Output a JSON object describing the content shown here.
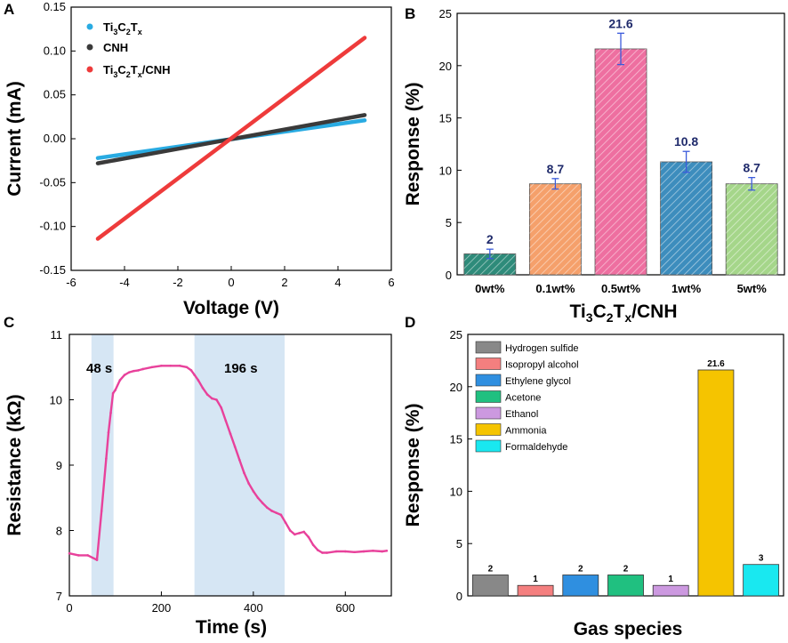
{
  "panels": {
    "A": "A",
    "B": "B",
    "C": "C",
    "D": "D"
  },
  "chart_data": [
    {
      "id": "A",
      "type": "line",
      "xlabel": "Voltage (V)",
      "ylabel": "Current (mA)",
      "xlim": [
        -6,
        6
      ],
      "ylim": [
        -0.15,
        0.15
      ],
      "xticks": [
        -6,
        -4,
        -2,
        0,
        2,
        4,
        6
      ],
      "yticks": [
        -0.15,
        -0.1,
        -0.05,
        0.0,
        0.05,
        0.1,
        0.15
      ],
      "ytick_labels": [
        "-0.15",
        "-0.10",
        "-0.05",
        "0.00",
        "0.05",
        "0.10",
        "0.15"
      ],
      "legend_position": "top-left",
      "series": [
        {
          "name": "Ti3C2Tx",
          "legend_main": "Ti",
          "legend_sub1": "3",
          "legend_mid": "C",
          "legend_sub2": "2",
          "legend_T": "T",
          "legend_sub3": "x",
          "legend_tail": "",
          "color": "#29abe2",
          "x": [
            -5,
            5
          ],
          "y": [
            -0.022,
            0.021
          ]
        },
        {
          "name": "CNH",
          "legend_text": "CNH",
          "color": "#3a3a3a",
          "x": [
            -5,
            5
          ],
          "y": [
            -0.028,
            0.027
          ]
        },
        {
          "name": "Ti3C2Tx/CNH",
          "legend_main": "Ti",
          "legend_sub1": "3",
          "legend_mid": "C",
          "legend_sub2": "2",
          "legend_T": "T",
          "legend_sub3": "x",
          "legend_tail": "/CNH",
          "color": "#ee3b3b",
          "x": [
            -5,
            5
          ],
          "y": [
            -0.114,
            0.115
          ]
        }
      ]
    },
    {
      "id": "B",
      "type": "bar",
      "categories": [
        "0wt%",
        "0.1wt%",
        "0.5wt%",
        "1wt%",
        "5wt%"
      ],
      "values": [
        2,
        8.7,
        21.6,
        10.8,
        8.7
      ],
      "errors": [
        0.45,
        0.5,
        1.5,
        1.0,
        0.6
      ],
      "value_labels": [
        "2",
        "8.7",
        "21.6",
        "10.8",
        "8.7"
      ],
      "colors": [
        "#2e8b7a",
        "#f5a06b",
        "#ee6fa0",
        "#3d8dbd",
        "#a5d68a"
      ],
      "xlabel_main": "Ti",
      "xlabel_sub1": "3",
      "xlabel_mid": "C",
      "xlabel_sub2": "2",
      "xlabel_T": "T",
      "xlabel_sub3": "x",
      "xlabel_tail": "/CNH",
      "ylabel": "Response (%)",
      "ylim": [
        0,
        25
      ],
      "yticks": [
        0,
        5,
        10,
        15,
        20,
        25
      ]
    },
    {
      "id": "C",
      "type": "line",
      "xlabel": "Time (s)",
      "ylabel": "Resistance (kΩ)",
      "xlim": [
        0,
        700
      ],
      "ylim": [
        7,
        11
      ],
      "xticks": [
        0,
        200,
        400,
        600
      ],
      "yticks": [
        7,
        8,
        9,
        10,
        11
      ],
      "color": "#e8419b",
      "shaded_regions": [
        [
          48,
          96
        ],
        [
          272,
          468
        ]
      ],
      "annotations": [
        "48 s",
        "196 s"
      ],
      "x": [
        0,
        20,
        40,
        60,
        70,
        80,
        85,
        90,
        95,
        100,
        110,
        120,
        130,
        140,
        150,
        160,
        180,
        200,
        220,
        240,
        255,
        265,
        272,
        280,
        290,
        300,
        310,
        320,
        330,
        340,
        350,
        360,
        370,
        380,
        390,
        400,
        410,
        420,
        430,
        440,
        450,
        460,
        470,
        480,
        490,
        500,
        510,
        520,
        530,
        540,
        550,
        560,
        580,
        600,
        620,
        640,
        660,
        680,
        690
      ],
      "y": [
        7.65,
        7.62,
        7.62,
        7.55,
        8.3,
        9.1,
        9.5,
        9.8,
        10.1,
        10.15,
        10.3,
        10.38,
        10.42,
        10.44,
        10.45,
        10.47,
        10.5,
        10.52,
        10.52,
        10.52,
        10.5,
        10.45,
        10.38,
        10.3,
        10.18,
        10.08,
        10.02,
        10.0,
        9.88,
        9.68,
        9.48,
        9.28,
        9.08,
        8.88,
        8.72,
        8.6,
        8.5,
        8.42,
        8.35,
        8.3,
        8.27,
        8.24,
        8.12,
        8.0,
        7.94,
        7.96,
        7.98,
        7.9,
        7.78,
        7.7,
        7.66,
        7.66,
        7.68,
        7.68,
        7.67,
        7.68,
        7.69,
        7.68,
        7.69
      ]
    },
    {
      "id": "D",
      "type": "bar",
      "categories": [
        "Hydrogen sulfide",
        "Isopropyl alcohol",
        "Ethylene glycol",
        "Acetone",
        "Ethanol",
        "Ammonia",
        "Formaldehyde"
      ],
      "values": [
        2,
        1,
        2,
        2,
        1,
        21.6,
        3
      ],
      "value_labels": [
        "2",
        "1",
        "2",
        "2",
        "1",
        "21.6",
        "3"
      ],
      "colors": [
        "#888888",
        "#f47f7f",
        "#2f8fe0",
        "#20c080",
        "#cc99e0",
        "#f5c400",
        "#19e8f0"
      ],
      "xlabel": "Gas species",
      "ylabel": "Response (%)",
      "ylim": [
        0,
        25
      ],
      "yticks": [
        0,
        5,
        10,
        15,
        20,
        25
      ],
      "legend_position": "top-left"
    }
  ]
}
